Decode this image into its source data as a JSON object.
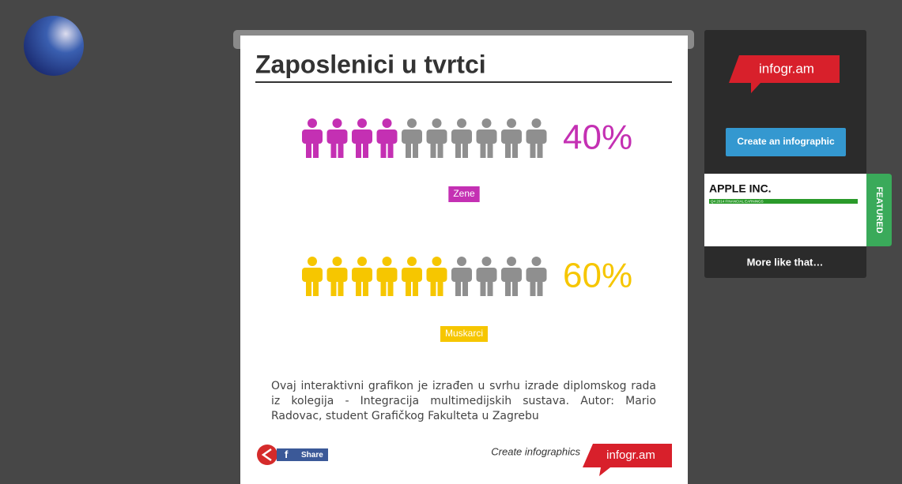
{
  "infographic": {
    "title": "Zaposlenici u tvrtci",
    "pictograms": [
      {
        "name": "Zene",
        "value": 40,
        "value_label": "40%",
        "color": "#c430b3"
      },
      {
        "name": "Muskarci",
        "value": 60,
        "value_label": "60%",
        "color": "#f6c600"
      }
    ],
    "description": "Ovaj interaktivni grafikon je izrađen u svrhu izrade diplomskog rada iz kolegija - Integracija multimedijskih sustava. Autor: Mario Radovac, student Grafičkog Fakulteta u Zagrebu",
    "footer": {
      "share": "Share",
      "create": "Create infographics",
      "brand": "infogr.am"
    }
  },
  "sidebar": {
    "brand": "infogr.am",
    "button": "Create an infographic",
    "featured_title": "APPLE INC.",
    "featured_subtitle": "Q4 2014 FINANCIAL EARNINGS",
    "featured_tag": "FEATURED",
    "more": "More like that…"
  }
}
